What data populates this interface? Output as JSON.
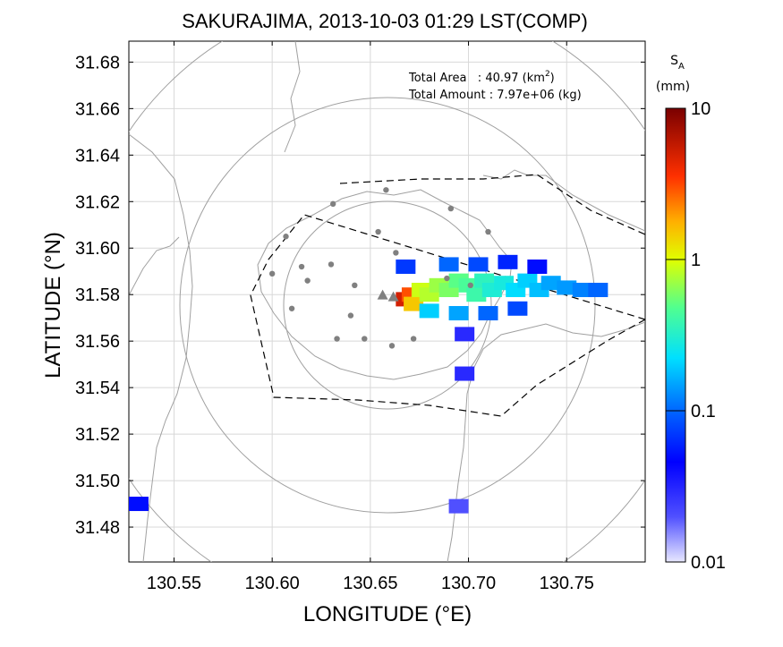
{
  "chart_data": {
    "type": "heatmap",
    "title": "SAKURAJIMA, 2013-10-03 01:29 LST(COMP)",
    "xlabel": "LONGITUDE (°E)",
    "ylabel": "LATITUDE (°N)",
    "xlim": [
      130.527,
      130.79
    ],
    "ylim": [
      31.465,
      31.689
    ],
    "x_ticks": [
      130.55,
      130.6,
      130.65,
      130.7,
      130.75
    ],
    "x_tick_labels": [
      "130.55",
      "130.60",
      "130.65",
      "130.70",
      "130.75"
    ],
    "y_ticks": [
      31.48,
      31.5,
      31.52,
      31.54,
      31.56,
      31.58,
      31.6,
      31.62,
      31.64,
      31.66,
      31.68
    ],
    "y_tick_labels": [
      "31.48",
      "31.50",
      "31.52",
      "31.54",
      "31.56",
      "31.58",
      "31.60",
      "31.62",
      "31.64",
      "31.66",
      "31.68"
    ],
    "grid": true,
    "annotations": {
      "total_area_label": "Total Area   : 40.97 (km",
      "total_area_sup": "2",
      "total_area_close": ")",
      "total_amount_label": "Total Amount : 7.97e+06 (kg)"
    },
    "colorbar": {
      "title_main": "S",
      "title_sub": "A",
      "unit": "(mm)",
      "scale": "log",
      "range": [
        0.01,
        10
      ],
      "tick_values": [
        10,
        1,
        0.1,
        0.01
      ],
      "tick_labels": [
        "10",
        "1",
        "0.1",
        "0.01"
      ],
      "colors": [
        "#800000",
        "#ff0000",
        "#ff8000",
        "#ffff00",
        "#80ff80",
        "#00ffff",
        "#0080ff",
        "#0000ff",
        "#e8e8ff"
      ]
    },
    "vent": {
      "lon": 130.659,
      "lat": 31.581
    },
    "range_rings_center": {
      "lon": 130.66,
      "lat": 31.578
    },
    "stations": [
      {
        "lon": 130.607,
        "lat": 31.605
      },
      {
        "lon": 130.631,
        "lat": 31.619
      },
      {
        "lon": 130.658,
        "lat": 31.625
      },
      {
        "lon": 130.691,
        "lat": 31.617
      },
      {
        "lon": 130.654,
        "lat": 31.607
      },
      {
        "lon": 130.663,
        "lat": 31.598
      },
      {
        "lon": 130.6,
        "lat": 31.589
      },
      {
        "lon": 130.615,
        "lat": 31.592
      },
      {
        "lon": 130.63,
        "lat": 31.593
      },
      {
        "lon": 130.618,
        "lat": 31.586
      },
      {
        "lon": 130.642,
        "lat": 31.584
      },
      {
        "lon": 130.61,
        "lat": 31.574
      },
      {
        "lon": 130.64,
        "lat": 31.571
      },
      {
        "lon": 130.633,
        "lat": 31.561
      },
      {
        "lon": 130.647,
        "lat": 31.561
      },
      {
        "lon": 130.661,
        "lat": 31.558
      },
      {
        "lon": 130.672,
        "lat": 31.561
      },
      {
        "lon": 130.689,
        "lat": 31.587
      },
      {
        "lon": 130.701,
        "lat": 31.584
      },
      {
        "lon": 130.71,
        "lat": 31.607
      }
    ],
    "plume_cells": [
      {
        "lon": 130.668,
        "lat": 31.578,
        "value": 5.0
      },
      {
        "lon": 130.671,
        "lat": 31.58,
        "value": 3.0
      },
      {
        "lon": 130.672,
        "lat": 31.576,
        "value": 1.5
      },
      {
        "lon": 130.676,
        "lat": 31.582,
        "value": 0.9
      },
      {
        "lon": 130.68,
        "lat": 31.58,
        "value": 0.8
      },
      {
        "lon": 130.685,
        "lat": 31.584,
        "value": 0.7
      },
      {
        "lon": 130.69,
        "lat": 31.582,
        "value": 0.6
      },
      {
        "lon": 130.695,
        "lat": 31.586,
        "value": 0.5
      },
      {
        "lon": 130.7,
        "lat": 31.584,
        "value": 0.45
      },
      {
        "lon": 130.704,
        "lat": 31.58,
        "value": 0.4
      },
      {
        "lon": 130.708,
        "lat": 31.586,
        "value": 0.35
      },
      {
        "lon": 130.712,
        "lat": 31.582,
        "value": 0.3
      },
      {
        "lon": 130.718,
        "lat": 31.585,
        "value": 0.28
      },
      {
        "lon": 130.724,
        "lat": 31.582,
        "value": 0.22
      },
      {
        "lon": 130.73,
        "lat": 31.586,
        "value": 0.2
      },
      {
        "lon": 130.736,
        "lat": 31.582,
        "value": 0.18
      },
      {
        "lon": 130.742,
        "lat": 31.585,
        "value": 0.15
      },
      {
        "lon": 130.75,
        "lat": 31.583,
        "value": 0.14
      },
      {
        "lon": 130.758,
        "lat": 31.582,
        "value": 0.12
      },
      {
        "lon": 130.766,
        "lat": 31.582,
        "value": 0.1
      },
      {
        "lon": 130.69,
        "lat": 31.593,
        "value": 0.1
      },
      {
        "lon": 130.705,
        "lat": 31.593,
        "value": 0.08
      },
      {
        "lon": 130.72,
        "lat": 31.594,
        "value": 0.06
      },
      {
        "lon": 130.735,
        "lat": 31.592,
        "value": 0.05
      },
      {
        "lon": 130.68,
        "lat": 31.573,
        "value": 0.2
      },
      {
        "lon": 130.695,
        "lat": 31.572,
        "value": 0.15
      },
      {
        "lon": 130.71,
        "lat": 31.572,
        "value": 0.1
      },
      {
        "lon": 130.725,
        "lat": 31.574,
        "value": 0.08
      },
      {
        "lon": 130.668,
        "lat": 31.592,
        "value": 0.07
      },
      {
        "lon": 130.698,
        "lat": 31.563,
        "value": 0.03
      },
      {
        "lon": 130.698,
        "lat": 31.546,
        "value": 0.03
      },
      {
        "lon": 130.532,
        "lat": 31.49,
        "value": 0.05
      },
      {
        "lon": 130.695,
        "lat": 31.489,
        "value": 0.02
      }
    ]
  }
}
